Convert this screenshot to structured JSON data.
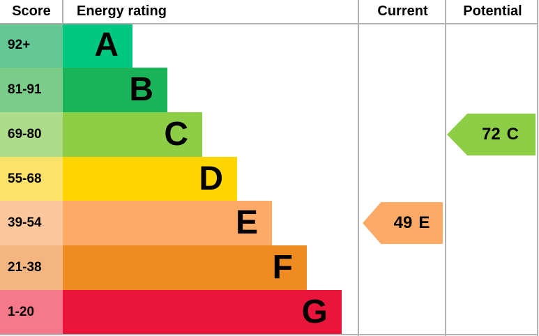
{
  "header": {
    "score": "Score",
    "energy_rating": "Energy rating",
    "current": "Current",
    "potential": "Potential"
  },
  "grid_color": "#b2b2b2",
  "chart_data": {
    "type": "bar",
    "title": "Energy rating",
    "legend_position": "none",
    "bands": [
      {
        "range": "92+",
        "letter": "A",
        "bar_color": "#00c781",
        "range_bg": "#63c796",
        "relative_length": 1
      },
      {
        "range": "81-91",
        "letter": "B",
        "bar_color": "#19b459",
        "range_bg": "#7bcb89",
        "relative_length": 2
      },
      {
        "range": "69-80",
        "letter": "C",
        "bar_color": "#8dce46",
        "range_bg": "#addd8a",
        "relative_length": 3
      },
      {
        "range": "55-68",
        "letter": "D",
        "bar_color": "#ffd500",
        "range_bg": "#fee36a",
        "relative_length": 4
      },
      {
        "range": "39-54",
        "letter": "E",
        "bar_color": "#fcaa65",
        "range_bg": "#fcc79d",
        "relative_length": 5
      },
      {
        "range": "21-38",
        "letter": "F",
        "bar_color": "#ee8b21",
        "range_bg": "#f4b681",
        "relative_length": 6
      },
      {
        "range": "1-20",
        "letter": "G",
        "bar_color": "#e9153b",
        "range_bg": "#f3798b",
        "relative_length": 7
      }
    ],
    "current": {
      "score": "49",
      "band": "E",
      "color": "#fcaa65"
    },
    "potential": {
      "score": "72",
      "band": "C",
      "color": "#8dce46"
    }
  }
}
